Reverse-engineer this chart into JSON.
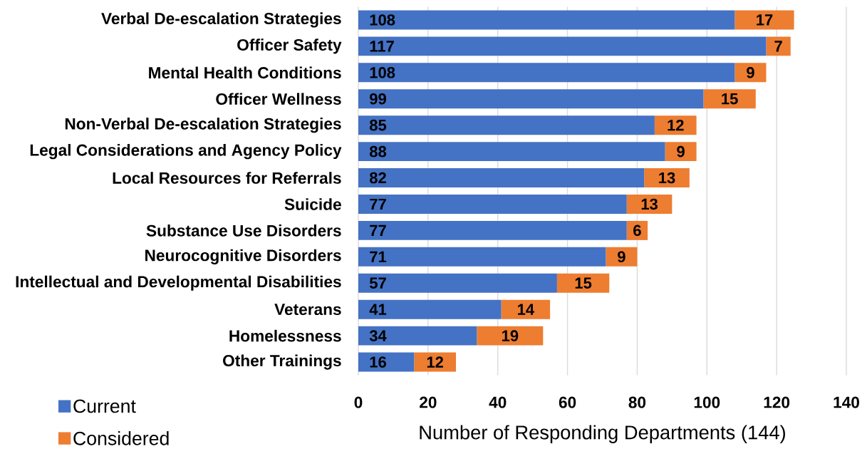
{
  "chart_data": {
    "type": "bar",
    "orientation": "horizontal",
    "stacked": true,
    "categories": [
      "Verbal De-escalation Strategies",
      "Officer Safety",
      "Mental Health Conditions",
      "Officer Wellness",
      "Non-Verbal De-escalation Strategies",
      "Legal Considerations and Agency Policy",
      "Local Resources for Referrals",
      "Suicide",
      "Substance Use Disorders",
      "Neurocognitive Disorders",
      "Intellectual and Developmental Disabilities",
      "Veterans",
      "Homelessness",
      "Other Trainings"
    ],
    "series": [
      {
        "name": "Current",
        "color": "#4472c4",
        "values": [
          108,
          117,
          108,
          99,
          85,
          88,
          82,
          77,
          77,
          71,
          57,
          41,
          34,
          16
        ]
      },
      {
        "name": "Considered",
        "color": "#ed7d31",
        "values": [
          17,
          7,
          9,
          15,
          12,
          9,
          13,
          13,
          6,
          9,
          15,
          14,
          19,
          12
        ]
      }
    ],
    "xlabel": "Number of Responding Departments (144)",
    "xlim": [
      0,
      140
    ],
    "xticks": [
      0,
      20,
      40,
      60,
      80,
      100,
      120,
      140
    ],
    "grid": "x",
    "legend": "bottom left",
    "data_labels": true
  }
}
